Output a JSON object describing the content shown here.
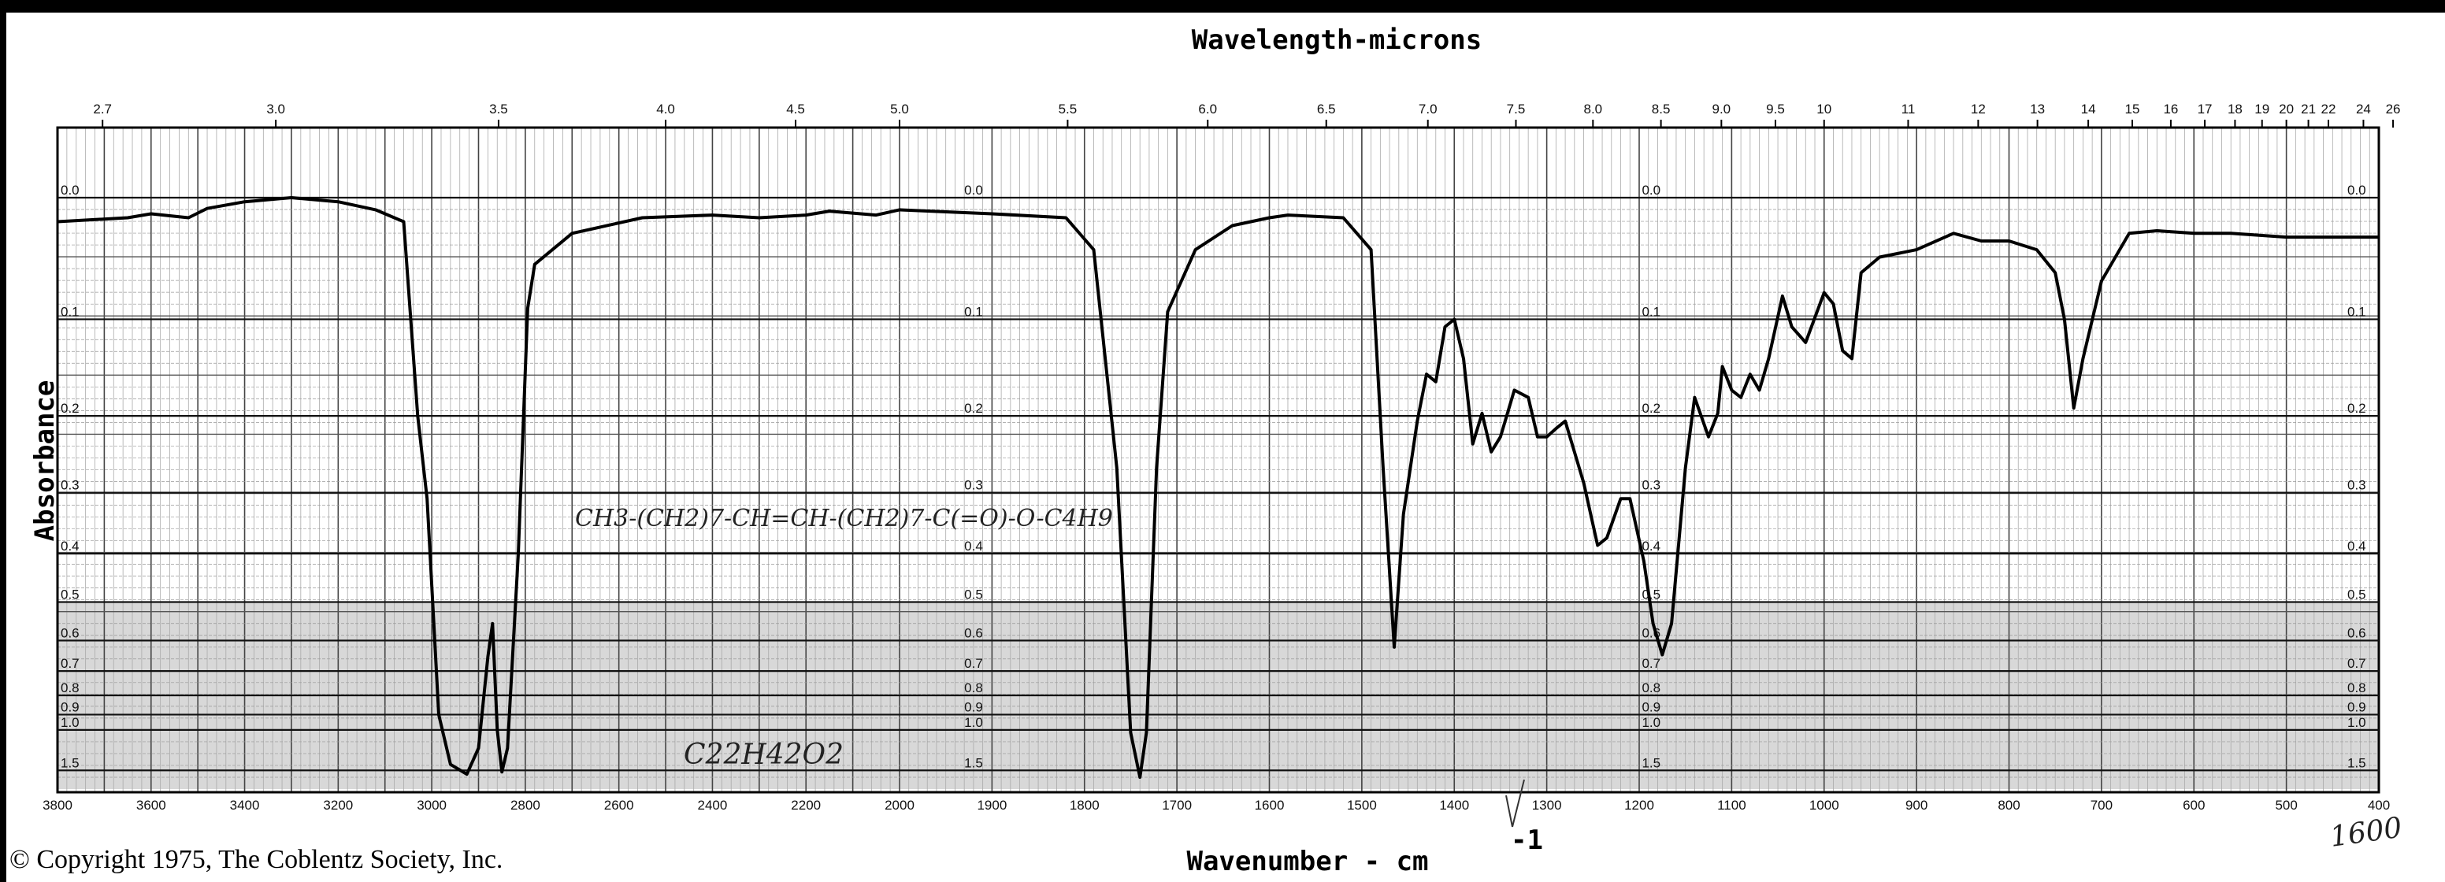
{
  "chart_data": {
    "type": "line",
    "title": "Wavelength-microns",
    "xlabel": "Wavenumber - cm",
    "xlabel_superscript": "-1",
    "ylabel": "Absorbance",
    "xlim": [
      3800,
      400
    ],
    "ylim": [
      0.0,
      1.5
    ],
    "grid": true,
    "x_ticks": [
      3800,
      3600,
      3400,
      3200,
      3000,
      2800,
      2600,
      2400,
      2200,
      2000,
      1900,
      1800,
      1700,
      1600,
      1500,
      1400,
      1300,
      1200,
      1100,
      1000,
      900,
      800,
      700,
      600,
      500,
      400
    ],
    "top_ticks_microns": [
      "2.7",
      "3.0",
      "3.5",
      "4.0",
      "4.5",
      "5.0",
      "5.5",
      "6.0",
      "6.5",
      "7.0",
      "7.5",
      "8.0",
      "8.5",
      "9.0",
      "9.5",
      "10",
      "11",
      "12",
      "13",
      "14",
      "15",
      "16",
      "17",
      "18",
      "19",
      "20",
      "21",
      "22",
      "24",
      "26"
    ],
    "y_ticks": [
      "0.0",
      "0.1",
      "0.2",
      "0.3",
      "0.4",
      "0.5",
      "0.6",
      "0.7",
      "0.8",
      "0.9",
      "1.0",
      "1.5"
    ],
    "series": [
      {
        "name": "spectrum",
        "points": [
          [
            3800,
            0.018
          ],
          [
            3650,
            0.015
          ],
          [
            3600,
            0.012
          ],
          [
            3520,
            0.015
          ],
          [
            3480,
            0.008
          ],
          [
            3400,
            0.003
          ],
          [
            3300,
            0.0
          ],
          [
            3200,
            0.003
          ],
          [
            3120,
            0.009
          ],
          [
            3060,
            0.018
          ],
          [
            3030,
            0.2
          ],
          [
            3010,
            0.309
          ],
          [
            2985,
            0.9
          ],
          [
            2960,
            1.38
          ],
          [
            2925,
            1.6
          ],
          [
            2900,
            1.16
          ],
          [
            2880,
            0.65
          ],
          [
            2870,
            0.553
          ],
          [
            2860,
            1.0
          ],
          [
            2850,
            1.54
          ],
          [
            2838,
            1.16
          ],
          [
            2815,
            0.4
          ],
          [
            2795,
            0.09
          ],
          [
            2780,
            0.052
          ],
          [
            2700,
            0.027
          ],
          [
            2550,
            0.015
          ],
          [
            2400,
            0.013
          ],
          [
            2300,
            0.015
          ],
          [
            2200,
            0.013
          ],
          [
            2150,
            0.01
          ],
          [
            2050,
            0.013
          ],
          [
            2000,
            0.009
          ],
          [
            1900,
            0.012
          ],
          [
            1820,
            0.015
          ],
          [
            1790,
            0.04
          ],
          [
            1765,
            0.265
          ],
          [
            1750,
            1.02
          ],
          [
            1740,
            1.7
          ],
          [
            1733,
            1.02
          ],
          [
            1722,
            0.265
          ],
          [
            1710,
            0.093
          ],
          [
            1680,
            0.04
          ],
          [
            1640,
            0.021
          ],
          [
            1600,
            0.015
          ],
          [
            1580,
            0.013
          ],
          [
            1520,
            0.015
          ],
          [
            1490,
            0.04
          ],
          [
            1477,
            0.265
          ],
          [
            1465,
            0.62
          ],
          [
            1455,
            0.333
          ],
          [
            1440,
            0.206
          ],
          [
            1430,
            0.154
          ],
          [
            1420,
            0.162
          ],
          [
            1410,
            0.107
          ],
          [
            1400,
            0.1
          ],
          [
            1390,
            0.138
          ],
          [
            1380,
            0.234
          ],
          [
            1370,
            0.197
          ],
          [
            1360,
            0.244
          ],
          [
            1350,
            0.225
          ],
          [
            1335,
            0.171
          ],
          [
            1320,
            0.179
          ],
          [
            1310,
            0.225
          ],
          [
            1300,
            0.225
          ],
          [
            1290,
            0.215
          ],
          [
            1280,
            0.206
          ],
          [
            1260,
            0.286
          ],
          [
            1245,
            0.385
          ],
          [
            1235,
            0.372
          ],
          [
            1220,
            0.309
          ],
          [
            1210,
            0.309
          ],
          [
            1195,
            0.414
          ],
          [
            1185,
            0.553
          ],
          [
            1175,
            0.644
          ],
          [
            1165,
            0.553
          ],
          [
            1150,
            0.265
          ],
          [
            1140,
            0.179
          ],
          [
            1125,
            0.225
          ],
          [
            1115,
            0.197
          ],
          [
            1110,
            0.146
          ],
          [
            1100,
            0.171
          ],
          [
            1090,
            0.179
          ],
          [
            1080,
            0.154
          ],
          [
            1070,
            0.171
          ],
          [
            1060,
            0.138
          ],
          [
            1045,
            0.079
          ],
          [
            1035,
            0.107
          ],
          [
            1020,
            0.122
          ],
          [
            1000,
            0.076
          ],
          [
            990,
            0.086
          ],
          [
            980,
            0.13
          ],
          [
            970,
            0.138
          ],
          [
            960,
            0.059
          ],
          [
            940,
            0.046
          ],
          [
            900,
            0.04
          ],
          [
            860,
            0.027
          ],
          [
            830,
            0.033
          ],
          [
            800,
            0.033
          ],
          [
            770,
            0.04
          ],
          [
            750,
            0.059
          ],
          [
            740,
            0.1
          ],
          [
            730,
            0.191
          ],
          [
            720,
            0.138
          ],
          [
            700,
            0.066
          ],
          [
            670,
            0.027
          ],
          [
            640,
            0.025
          ],
          [
            600,
            0.027
          ],
          [
            560,
            0.027
          ],
          [
            500,
            0.03
          ],
          [
            400,
            0.03
          ]
        ]
      }
    ],
    "annotations": {
      "formula": "CH3-(CH2)7-CH=CH-(CH2)7-C(=O)-O-C4H9",
      "molecular_formula": "C22H42O2",
      "handwritten_number": "1600"
    }
  },
  "footer": {
    "copyright": "© Copyright 1975, The Coblentz Society, Inc."
  }
}
